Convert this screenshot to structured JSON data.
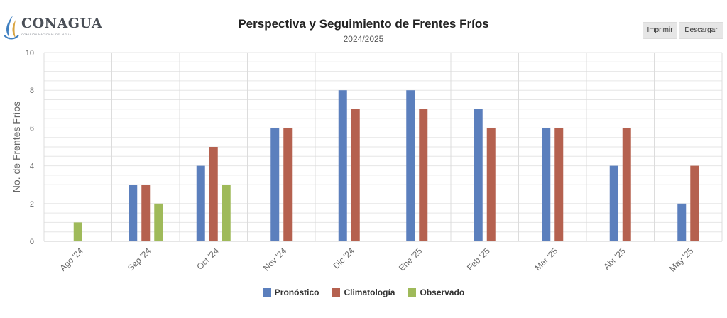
{
  "header": {
    "logo_text": "CONAGUA",
    "logo_subtext": "COMISIÓN NACIONAL DEL AGUA",
    "print_label": "Imprimir",
    "download_label": "Descargar"
  },
  "colors": {
    "Pronóstico": "#5b7fbd",
    "Climatología": "#b5614f",
    "Observado": "#9fba5a",
    "grid": "#e6e6e6",
    "axis_text": "#666666"
  },
  "chart_data": {
    "type": "bar",
    "title": "Perspectiva y Seguimiento de Frentes Fríos",
    "subtitle": "2024/2025",
    "xlabel": "",
    "ylabel": "No. de Frentes Fríos",
    "ylim": [
      0,
      10
    ],
    "yticks": [
      0,
      2,
      4,
      6,
      8,
      10
    ],
    "grid": true,
    "legend_position": "bottom-center",
    "categories": [
      "Ago '24",
      "Sep '24",
      "Oct '24",
      "Nov '24",
      "Dic '24",
      "Ene '25",
      "Feb '25",
      "Mar '25",
      "Abr '25",
      "May '25"
    ],
    "series": [
      {
        "name": "Pronóstico",
        "values": [
          null,
          3,
          4,
          6,
          8,
          8,
          7,
          6,
          4,
          2
        ]
      },
      {
        "name": "Climatología",
        "values": [
          null,
          3,
          5,
          6,
          7,
          7,
          6,
          6,
          6,
          4
        ]
      },
      {
        "name": "Observado",
        "values": [
          1,
          2,
          3,
          null,
          null,
          null,
          null,
          null,
          null,
          null
        ]
      }
    ]
  }
}
